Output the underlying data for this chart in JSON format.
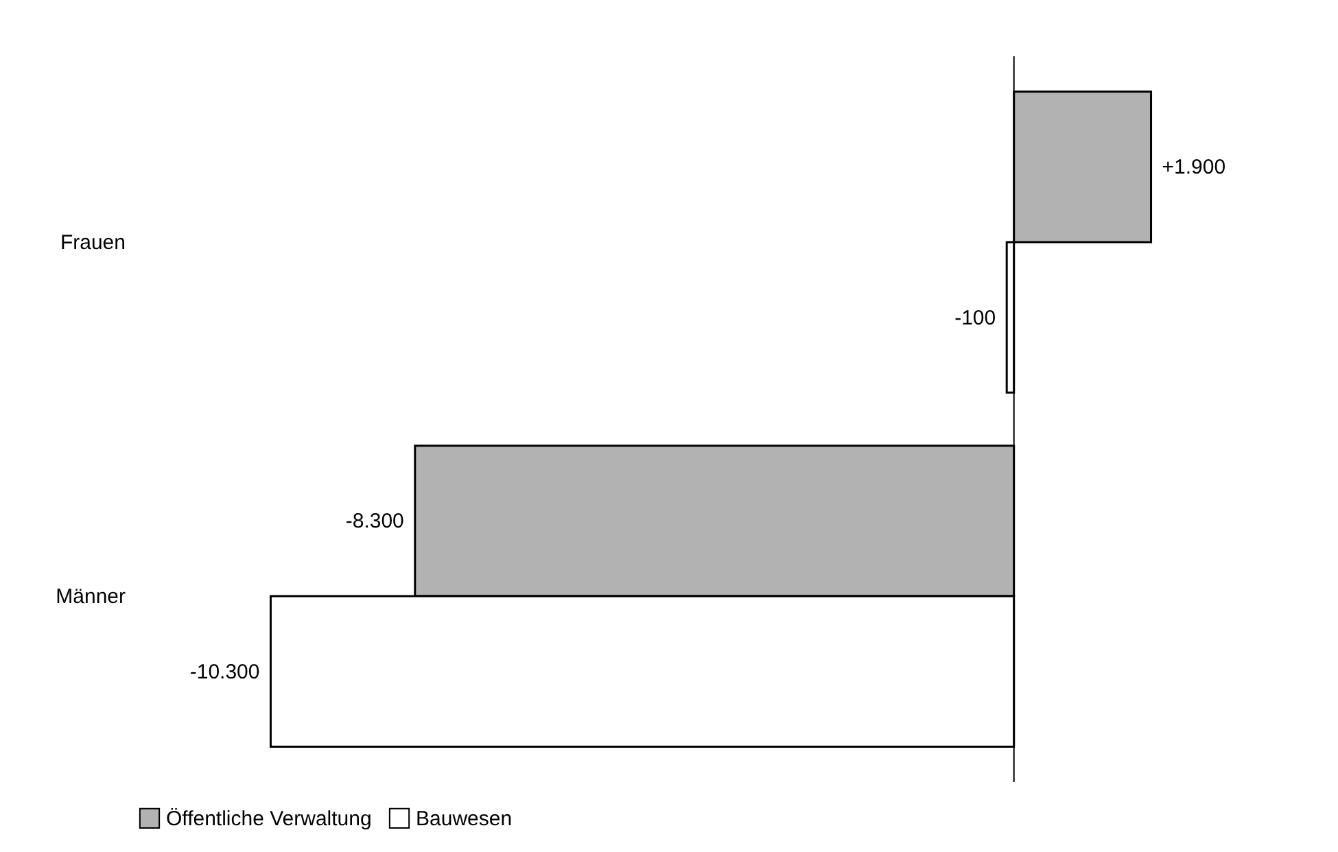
{
  "chart_data": {
    "type": "bar",
    "orientation": "horizontal",
    "tick_labels": "y",
    "categories": [
      "Frauen",
      "Männer"
    ],
    "series": [
      {
        "name": "Öffentliche Verwaltung",
        "color": "#b2b2b2",
        "values": [
          1900,
          -8300
        ],
        "value_labels": [
          "+1.900",
          "-8.300"
        ]
      },
      {
        "name": "Bauwesen",
        "color": "#ffffff",
        "values": [
          -100,
          -10300
        ],
        "value_labels": [
          "-100",
          "-10.300"
        ]
      }
    ],
    "legend": "bottom"
  }
}
